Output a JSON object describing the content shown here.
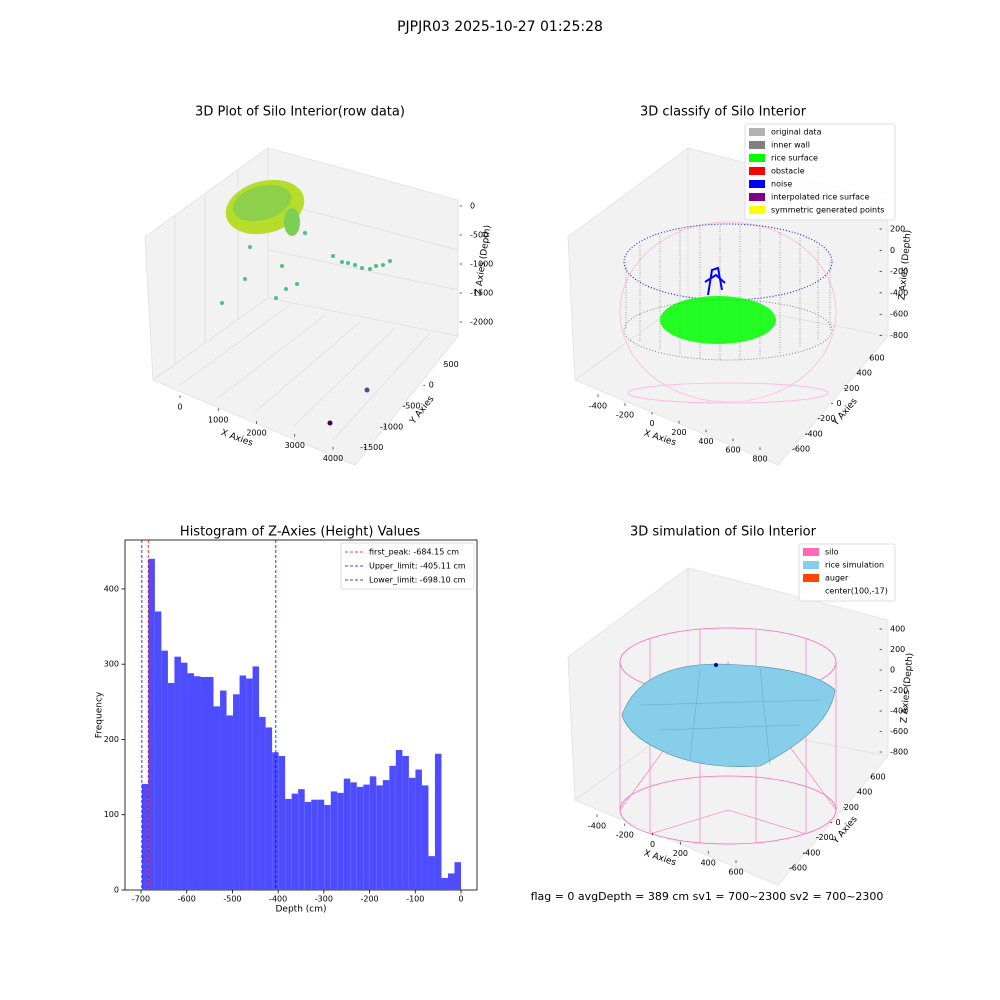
{
  "title": "PJPJR03 2025-10-27 01:25:28",
  "footer": "flag = 0     avgDepth = 389 cm  sv1 = 700~2300  sv2 = 700~2300",
  "chart_data": [
    {
      "type": "scatter3d",
      "title": "3D Plot of Silo Interior(row data)",
      "xlabel": "X Axies",
      "ylabel": "Y Axies",
      "zlabel": "Z Axies (Depth)",
      "xlim": [
        -700,
        4300
      ],
      "xticks": [
        0,
        1000,
        2000,
        3000,
        4000
      ],
      "ylim": [
        -1800,
        800
      ],
      "yticks": [
        -1500,
        -1000,
        -500,
        0,
        500
      ],
      "zlim": [
        -2300,
        200
      ],
      "zticks": [
        -2000,
        -1500,
        -1000,
        -500,
        0
      ]
    },
    {
      "type": "scatter3d",
      "title": "3D classify of Silo Interior",
      "xlabel": "X Axies",
      "ylabel": "Y Axies",
      "zlabel": "Z Axies (Depth)",
      "xlim": [
        -520,
        880
      ],
      "xticks": [
        -400,
        -200,
        0,
        200,
        400,
        600,
        800
      ],
      "ylim": [
        -700,
        700
      ],
      "yticks": [
        -600,
        -400,
        -200,
        0,
        200,
        400,
        600
      ],
      "zlim": [
        -950,
        350
      ],
      "zticks": [
        -800,
        -600,
        -400,
        -200,
        0,
        200
      ],
      "legend_position": "upper right",
      "legend": [
        {
          "name": "original data",
          "color": "#b3b3b3"
        },
        {
          "name": "inner wall",
          "color": "#808080"
        },
        {
          "name": "rice surface",
          "color": "#00ff00"
        },
        {
          "name": "obstacle",
          "color": "#ff0000"
        },
        {
          "name": "noise",
          "color": "#0000ff"
        },
        {
          "name": "interpolated rice surface",
          "color": "#800080"
        },
        {
          "name": "symmetric generated points",
          "color": "#ffff00"
        }
      ]
    },
    {
      "type": "histogram",
      "title": "Histogram of Z-Axies (Height) Values",
      "xlabel": "Depth (cm)",
      "ylabel": "Frequency",
      "color": "#4d4dff",
      "bins": [
        -698.1,
        -683.9,
        -669.6,
        -655.4,
        -641.1,
        -626.9,
        -612.6,
        -598.4,
        -584.1,
        -569.9,
        -555.6,
        -541.4,
        -527.1,
        -512.9,
        -498.6,
        -484.4,
        -470.1,
        -455.9,
        -441.7,
        -427.4,
        -413.2,
        -398.9,
        -384.7,
        -370.4,
        -356.2,
        -341.9,
        -327.7,
        -313.4,
        -299.2,
        -284.9,
        -270.7,
        -256.4,
        -242.2,
        -228.0,
        -213.7,
        -199.5,
        -185.2,
        -171.0,
        -156.7,
        -142.5,
        -128.2,
        -114.0,
        -99.7,
        -85.5,
        -71.2,
        -57.0,
        -42.7,
        -28.5,
        -14.2,
        0.0
      ],
      "counts": [
        141,
        440,
        370,
        318,
        275,
        310,
        302,
        288,
        284,
        283,
        283,
        244,
        265,
        232,
        260,
        285,
        281,
        297,
        230,
        216,
        183,
        178,
        121,
        128,
        134,
        117,
        120,
        120,
        113,
        131,
        129,
        148,
        143,
        137,
        140,
        151,
        139,
        146,
        165,
        186,
        178,
        149,
        160,
        139,
        45,
        181,
        16,
        22,
        37
      ],
      "xlim": [
        -735,
        35
      ],
      "xticks": [
        -700,
        -600,
        -500,
        -400,
        -300,
        -200,
        -100,
        0
      ],
      "ylim": [
        0,
        465
      ],
      "yticks": [
        0,
        100,
        200,
        300,
        400
      ],
      "legend_position": "upper right",
      "vlines": [
        {
          "name": "first_peak: -684.15 cm",
          "value": -684.15,
          "color": "#ff0000"
        },
        {
          "name": "Upper_limit: -405.11 cm",
          "value": -405.11,
          "color": "#0000ff"
        },
        {
          "name": "Lower_limit: -698.10 cm",
          "value": -698.1,
          "color": "#0000ff"
        }
      ]
    },
    {
      "type": "surface3d",
      "title": "3D simulation of Silo Interior",
      "xlabel": "X Axies",
      "ylabel": "Y Axies",
      "zlabel": "Z Axies (Depth)",
      "xlim": [
        -520,
        720
      ],
      "xticks": [
        -400,
        -200,
        0,
        200,
        400,
        600
      ],
      "ylim": [
        -700,
        700
      ],
      "yticks": [
        -600,
        -400,
        -200,
        0,
        200,
        400,
        600
      ],
      "zlim": [
        -950,
        500
      ],
      "zticks": [
        -800,
        -600,
        -400,
        -200,
        0,
        200,
        400
      ],
      "legend_position": "upper right",
      "legend": [
        {
          "name": "silo",
          "color": "#ff69b4"
        },
        {
          "name": "rice simulation",
          "color": "#87ceeb"
        },
        {
          "name": "auger",
          "color": "#ff4500"
        },
        {
          "name": "center(100,-17)"
        }
      ]
    }
  ]
}
